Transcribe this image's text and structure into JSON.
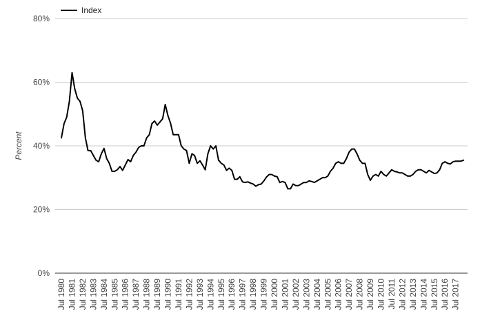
{
  "chart_data": {
    "type": "line",
    "title": "",
    "xlabel": "",
    "ylabel": "Percent",
    "ylim": [
      0,
      80
    ],
    "y_ticks": [
      "0%",
      "20%",
      "40%",
      "60%",
      "80%"
    ],
    "grid": true,
    "legend_position": "top-left",
    "x_ticks": [
      "Jul 1980",
      "Jul 1981",
      "Jul 1982",
      "Jul 1983",
      "Jul 1984",
      "Jul 1985",
      "Jul 1986",
      "Jul 1987",
      "Jul 1988",
      "Jul 1989",
      "Jul 1990",
      "Jul 1991",
      "Jul 1992",
      "Jul 1993",
      "Jul 1994",
      "Jul 1995",
      "Jul 1996",
      "Jul 1997",
      "Jul 1998",
      "Jul 1999",
      "Jul 2000",
      "Jul 2001",
      "Jul 2002",
      "Jul 2003",
      "Jul 2004",
      "Jul 2005",
      "Jul 2006",
      "Jul 2007",
      "Jul 2008",
      "Jul 2009",
      "Jul 2010",
      "Jul 2011",
      "Jul 2012",
      "Jul 2013",
      "Jul 2014",
      "Jul 2015",
      "Jul 2016",
      "Jul 2017"
    ],
    "x_start_year": 1980.5,
    "x_step_years": 0.25,
    "series": [
      {
        "name": "Index",
        "color": "#000000",
        "values": [
          42.5,
          47,
          49,
          54,
          63,
          58,
          55,
          54,
          51,
          42.5,
          38.5,
          38.5,
          37,
          35.5,
          35,
          37.5,
          39.2,
          36,
          34.5,
          32,
          32,
          32.5,
          33.5,
          32.3,
          34,
          35.7,
          35,
          37,
          38,
          39.5,
          40,
          40,
          42.5,
          43.5,
          47,
          47.8,
          46.5,
          47.5,
          48.5,
          53,
          49.5,
          47,
          43.5,
          43.5,
          43.5,
          40,
          39,
          38.5,
          34.5,
          37.5,
          37,
          34.5,
          35.3,
          34,
          32.5,
          37.5,
          40,
          39,
          40,
          35.5,
          34.5,
          34,
          32.3,
          33,
          32.3,
          29.5,
          29.5,
          30.3,
          28.7,
          28.5,
          28.7,
          28.3,
          28,
          27.3,
          27.8,
          28,
          29,
          30.2,
          31,
          31,
          30.5,
          30.3,
          28.5,
          28.8,
          28.5,
          26.5,
          26.5,
          28,
          27.5,
          27.5,
          28,
          28.5,
          28.5,
          29,
          28.8,
          28.5,
          29,
          29.5,
          30,
          30,
          30.5,
          32,
          33,
          34.5,
          35,
          34.5,
          34.5,
          36,
          38,
          39,
          39,
          37.5,
          35.5,
          34.5,
          34.5,
          31,
          29.2,
          30.5,
          31,
          30.5,
          32,
          31,
          30.5,
          31.5,
          32.5,
          32,
          31.8,
          31.5,
          31.5,
          31,
          30.5,
          30.5,
          31,
          32,
          32.5,
          32.5,
          32,
          31.5,
          32.3,
          31.8,
          31.3,
          31.5,
          32.5,
          34.5,
          35,
          34.5,
          34.3,
          35,
          35.2,
          35.2,
          35.2,
          35.5
        ]
      }
    ]
  }
}
